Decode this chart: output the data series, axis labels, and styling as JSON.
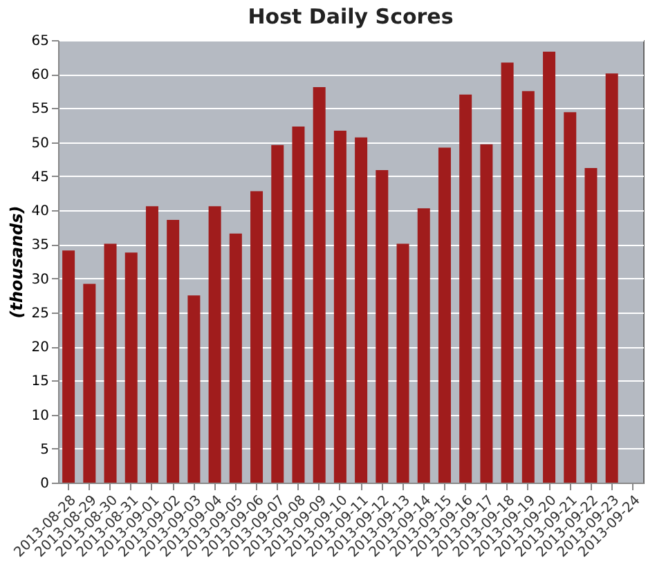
{
  "chart_data": {
    "type": "bar",
    "title": "Host Daily Scores",
    "ylabel": "(thousands)",
    "categories": [
      "2013-08-28",
      "2013-08-29",
      "2013-08-30",
      "2013-08-31",
      "2013-09-01",
      "2013-09-02",
      "2013-09-03",
      "2013-09-04",
      "2013-09-05",
      "2013-09-06",
      "2013-09-07",
      "2013-09-08",
      "2013-09-09",
      "2013-09-10",
      "2013-09-11",
      "2013-09-12",
      "2013-09-13",
      "2013-09-14",
      "2013-09-15",
      "2013-09-16",
      "2013-09-17",
      "2013-09-18",
      "2013-09-19",
      "2013-09-20",
      "2013-09-21",
      "2013-09-22",
      "2013-09-23",
      "2013-09-24"
    ],
    "values": [
      34.1,
      29.2,
      35.1,
      33.8,
      40.6,
      38.6,
      27.5,
      40.6,
      36.6,
      42.8,
      49.6,
      52.3,
      58.1,
      51.7,
      50.7,
      45.9,
      35.1,
      40.3,
      49.2,
      57.0,
      49.7,
      61.7,
      57.5,
      63.3,
      54.4,
      46.2,
      60.1,
      0
    ],
    "color": "#a01c1c",
    "ylim": [
      0,
      65
    ],
    "yticks": [
      0,
      5,
      10,
      15,
      20,
      25,
      30,
      35,
      40,
      45,
      50,
      55,
      60,
      65
    ],
    "grid": "y"
  }
}
